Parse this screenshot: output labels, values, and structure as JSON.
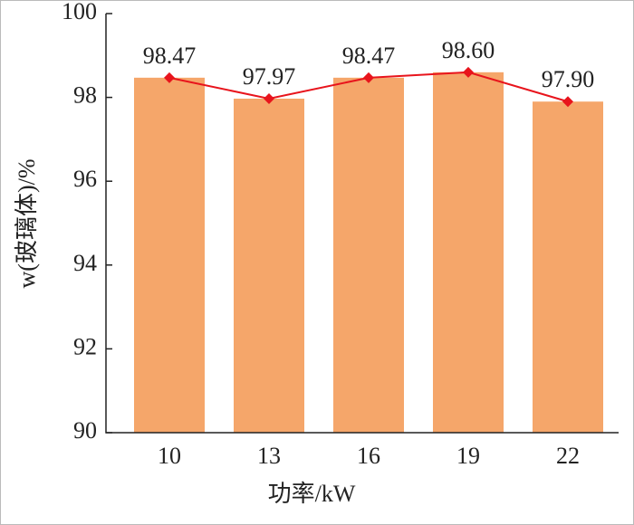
{
  "chart_data": {
    "type": "bar",
    "xlabel": "功率/kW",
    "ylabel": "w(玻璃体)/%",
    "categories": [
      "10",
      "13",
      "16",
      "19",
      "22"
    ],
    "values": [
      98.47,
      97.97,
      98.47,
      98.6,
      97.9
    ],
    "value_labels": [
      "98.47",
      "97.97",
      "98.47",
      "98.60",
      "97.90"
    ],
    "color": "#f5a66a",
    "line_color": "#e8141c",
    "ylim": [
      90,
      100
    ],
    "yticks": [
      90,
      92,
      94,
      96,
      98,
      100
    ]
  }
}
